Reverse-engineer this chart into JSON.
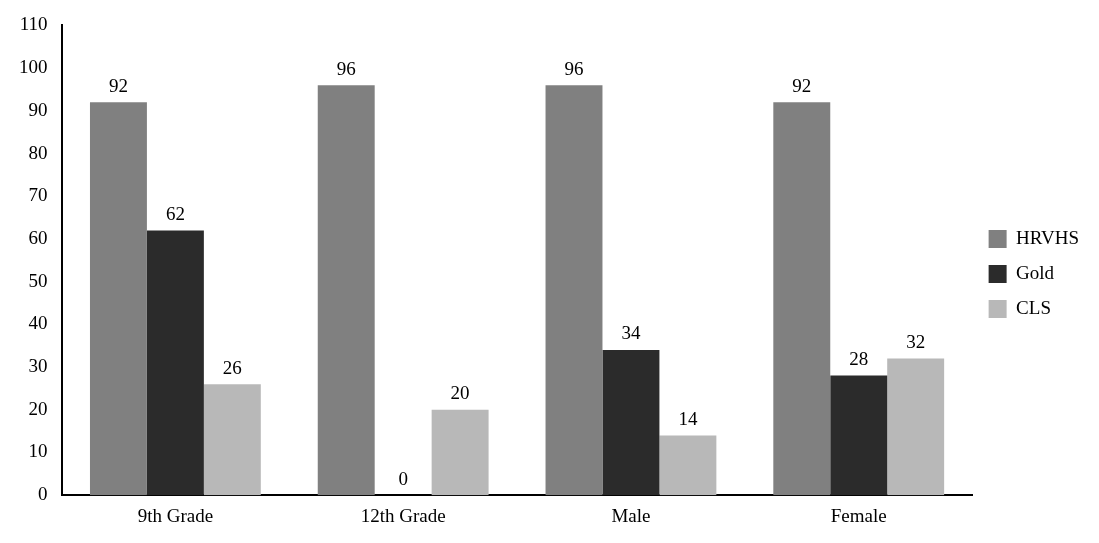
{
  "chart_data": {
    "type": "bar",
    "categories": [
      "9th Grade",
      "12th Grade",
      "Male",
      "Female"
    ],
    "series": [
      {
        "name": "HRVHS",
        "color": "#808080",
        "values": [
          92,
          96,
          96,
          92
        ]
      },
      {
        "name": "Gold",
        "color": "#2b2b2b",
        "values": [
          62,
          0,
          34,
          28
        ]
      },
      {
        "name": "CLS",
        "color": "#b8b8b8",
        "values": [
          26,
          20,
          14,
          32
        ]
      }
    ],
    "ylim": [
      0,
      110
    ],
    "yticks": [
      0,
      10,
      20,
      30,
      40,
      50,
      60,
      70,
      80,
      90,
      100,
      110
    ],
    "grid": false,
    "legend": "right",
    "data_labels": true
  }
}
